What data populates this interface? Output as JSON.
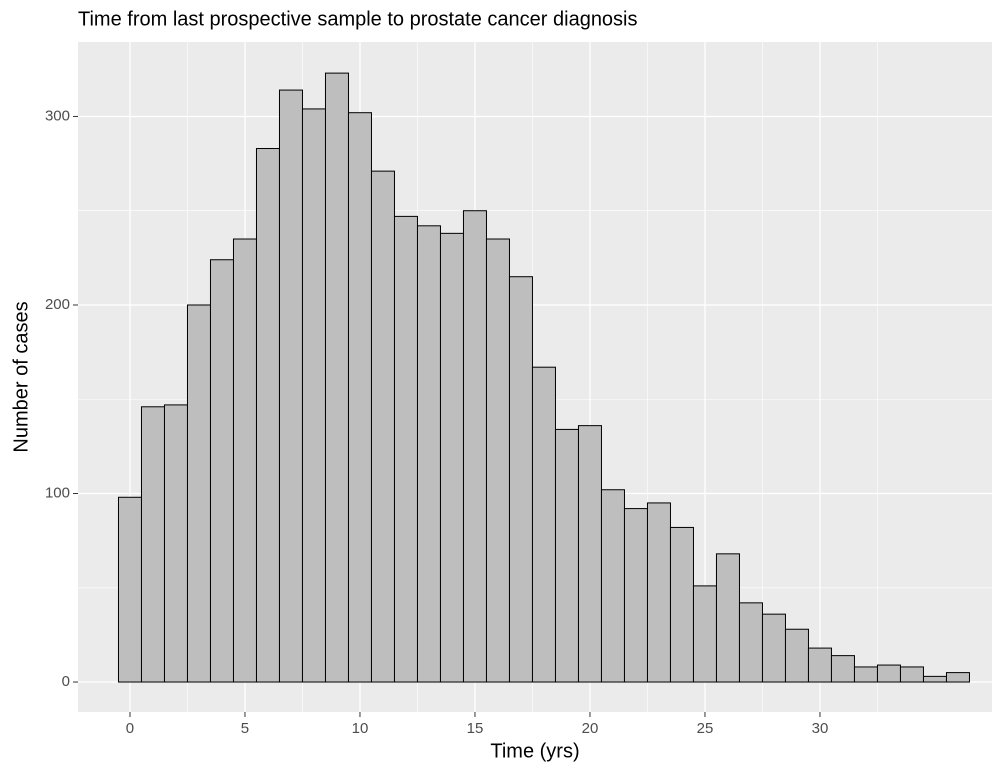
{
  "chart_data": {
    "type": "histogram",
    "title": "Time from last prospective sample to prostate cancer diagnosis",
    "xlabel": "Time (yrs)",
    "ylabel": "Number of cases",
    "bins": [
      -0.5,
      0.5,
      1.5,
      2.5,
      3.5,
      4.5,
      5.5,
      6.5,
      7.5,
      8.5,
      9.5,
      10.5,
      11.5,
      12.5,
      13.5,
      14.5,
      15.5,
      16.5,
      17.5,
      18.5,
      19.5,
      20.5,
      21.5,
      22.5,
      23.5,
      24.5,
      25.5,
      26.5,
      27.5,
      28.5,
      29.5,
      30.5,
      31.5,
      32.5,
      33.5,
      34.5,
      35.5,
      36.5
    ],
    "values": [
      98,
      146,
      147,
      200,
      224,
      235,
      283,
      314,
      304,
      323,
      302,
      271,
      247,
      242,
      238,
      250,
      235,
      215,
      167,
      134,
      136,
      102,
      92,
      95,
      82,
      51,
      68,
      42,
      36,
      28,
      18,
      14,
      8,
      9,
      8,
      3,
      5
    ],
    "color": "#bebebe",
    "edgecolor": "#000000",
    "xlim": [
      -2.26,
      37.48
    ],
    "ylim": [
      -15.9,
      339.5
    ],
    "xticks": [
      0,
      5,
      10,
      15,
      20,
      25,
      30
    ],
    "yticks": [
      0,
      100,
      200,
      300
    ],
    "grid": true
  }
}
